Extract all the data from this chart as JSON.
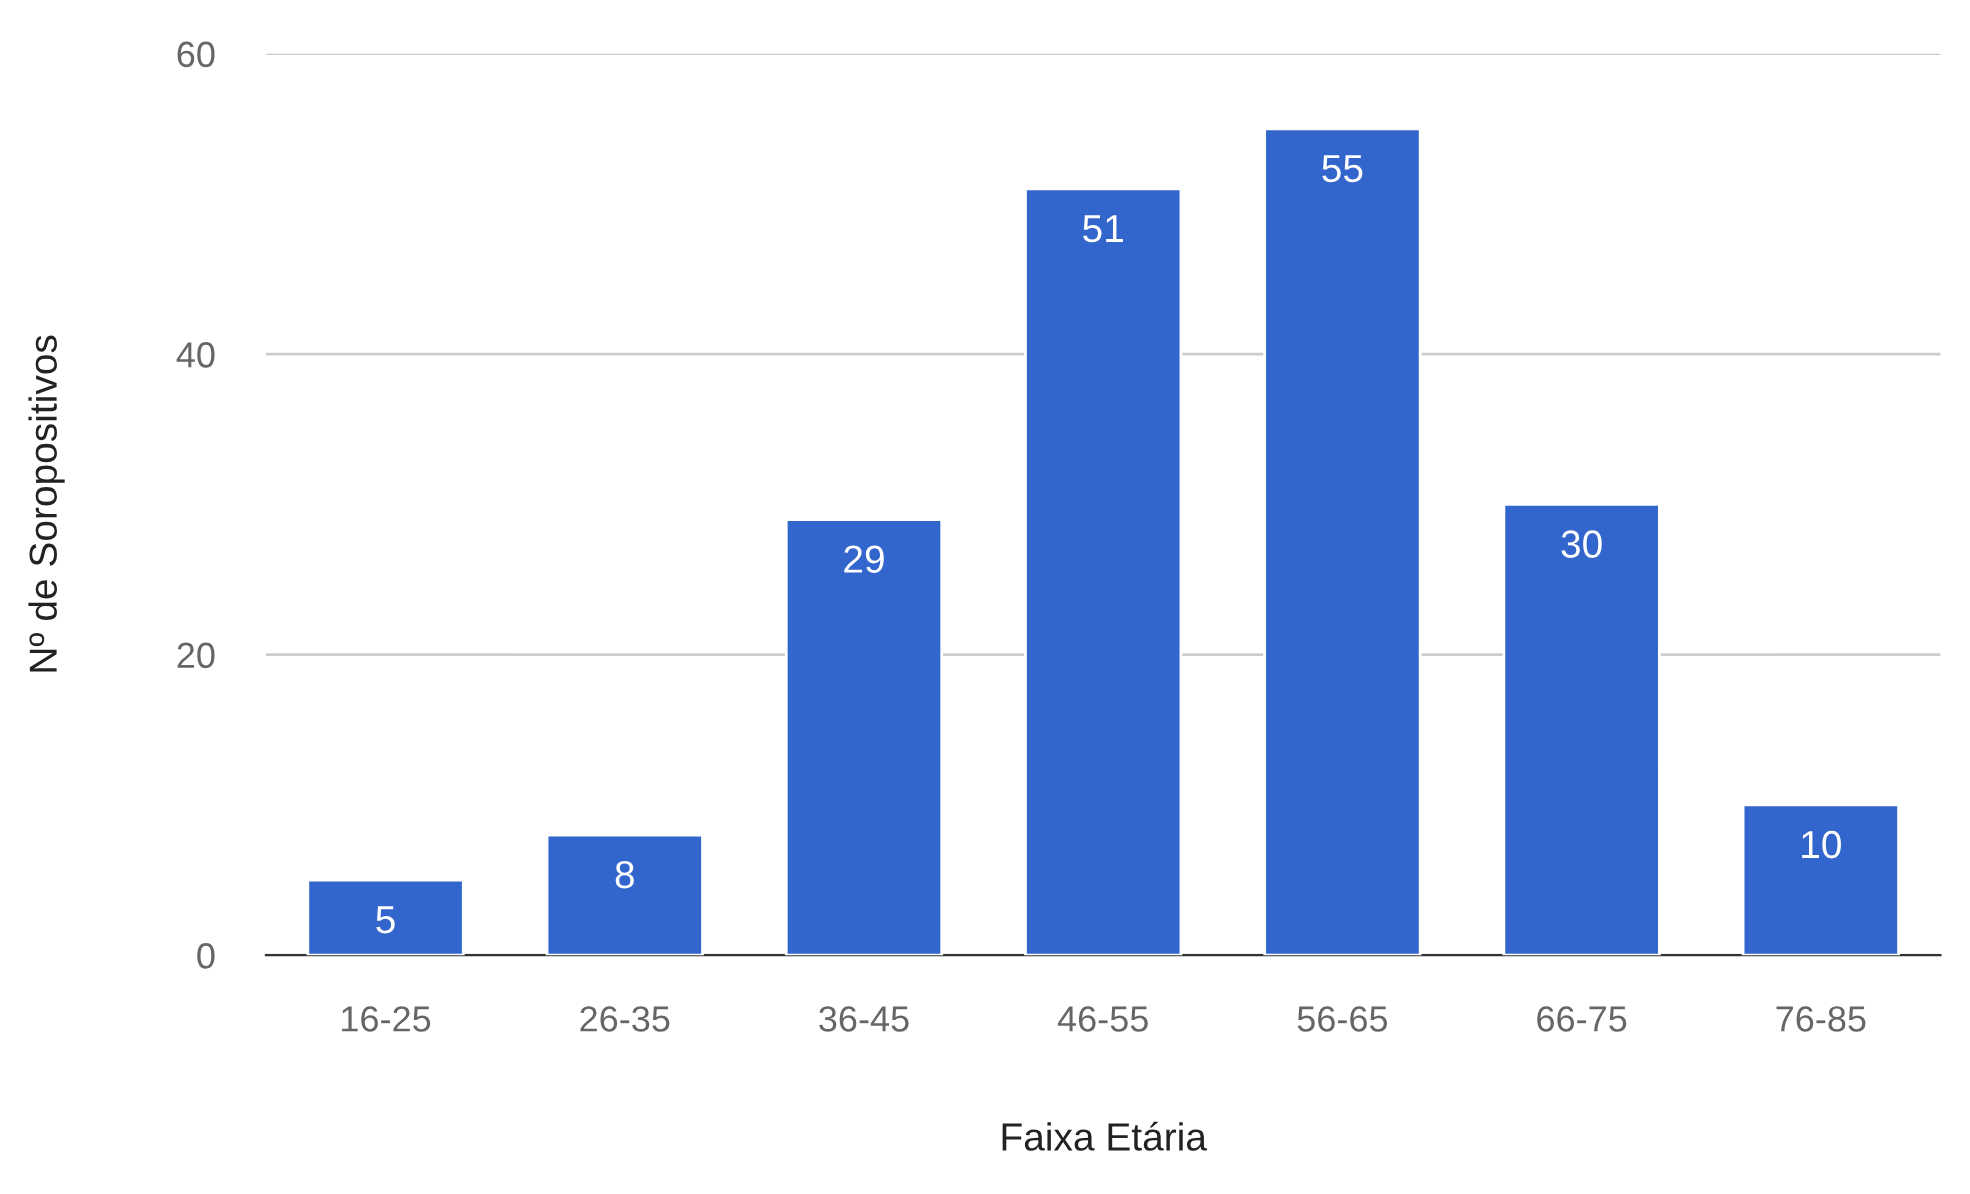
{
  "chart_data": {
    "type": "bar",
    "xlabel": "Faixa Etária",
    "ylabel": "Nº de Soropositivos",
    "categories": [
      "16-25",
      "26-35",
      "36-45",
      "46-55",
      "56-65",
      "66-75",
      "76-85"
    ],
    "values": [
      5,
      8,
      29,
      51,
      55,
      30,
      10
    ],
    "color": "#3366cc",
    "ylim": [
      0,
      60
    ],
    "yticks": [
      0,
      20,
      40,
      60
    ],
    "grid": "y",
    "data_labels": true
  }
}
